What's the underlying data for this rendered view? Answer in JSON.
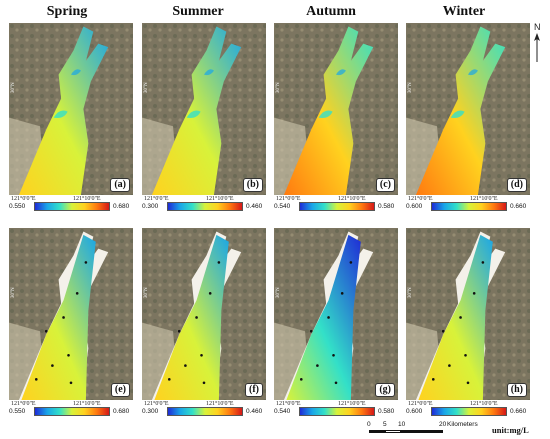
{
  "seasons": [
    "Spring",
    "Summer",
    "Autumn",
    "Winter"
  ],
  "north_label": "N",
  "coord_top_left": "121°0'0\"E",
  "coord_top_right": "121°10'0\"E",
  "coord_side": "30°N",
  "panels": [
    {
      "label": "(a)",
      "season": "Spring",
      "min": "0.550",
      "max": "0.680",
      "method": "retrieved",
      "mean_level": 0.55
    },
    {
      "label": "(b)",
      "season": "Summer",
      "min": "0.300",
      "max": "0.460",
      "method": "retrieved",
      "mean_level": 0.5
    },
    {
      "label": "(c)",
      "season": "Autumn",
      "min": "0.540",
      "max": "0.580",
      "method": "retrieved",
      "mean_level": 0.62
    },
    {
      "label": "(d)",
      "season": "Winter",
      "min": "0.600",
      "max": "0.660",
      "method": "retrieved",
      "mean_level": 0.6
    },
    {
      "label": "(e)",
      "season": "Spring",
      "min": "0.550",
      "max": "0.680",
      "method": "interpolated",
      "mean_level": 0.5
    },
    {
      "label": "(f)",
      "season": "Summer",
      "min": "0.300",
      "max": "0.460",
      "method": "interpolated",
      "mean_level": 0.55
    },
    {
      "label": "(g)",
      "season": "Autumn",
      "min": "0.540",
      "max": "0.580",
      "method": "interpolated",
      "mean_level": 0.35
    },
    {
      "label": "(h)",
      "season": "Winter",
      "min": "0.600",
      "max": "0.660",
      "method": "interpolated",
      "mean_level": 0.58
    }
  ],
  "scale_bar": {
    "ticks": [
      "0",
      "5",
      "10",
      "20"
    ],
    "unit": "Kilometers"
  },
  "units": "unit:mg/L",
  "colors": {
    "ramp": [
      "#1f2bd6",
      "#19a6e8",
      "#33e0c8",
      "#d8f23a",
      "#ffd21f",
      "#ff7a10",
      "#d61818"
    ],
    "terrain": "#7c7560",
    "land_light": "#cfc7ae"
  }
}
